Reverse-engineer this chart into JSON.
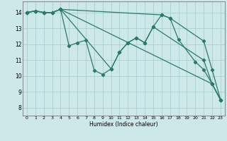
{
  "xlabel": "Humidex (Indice chaleur)",
  "xlim": [
    -0.5,
    23.5
  ],
  "ylim": [
    7.5,
    14.7
  ],
  "yticks": [
    8,
    9,
    10,
    11,
    12,
    13,
    14
  ],
  "xticks": [
    0,
    1,
    2,
    3,
    4,
    5,
    6,
    7,
    8,
    9,
    10,
    11,
    12,
    13,
    14,
    15,
    16,
    17,
    18,
    19,
    20,
    21,
    22,
    23
  ],
  "bg_color": "#cce8e8",
  "grid_color": "#aacece",
  "line_color": "#2a7a6a",
  "lines": [
    {
      "x": [
        0,
        1,
        2,
        3,
        4,
        16,
        17,
        21,
        22,
        23
      ],
      "y": [
        14.0,
        14.1,
        14.0,
        14.0,
        14.2,
        13.85,
        13.65,
        12.2,
        10.4,
        8.5
      ]
    },
    {
      "x": [
        0,
        1,
        2,
        3,
        4,
        5,
        6,
        7,
        8,
        9,
        10,
        11,
        12,
        13,
        14,
        15,
        21,
        22,
        23
      ],
      "y": [
        14.0,
        14.1,
        14.0,
        14.0,
        14.2,
        11.9,
        12.1,
        12.25,
        10.35,
        10.1,
        10.45,
        11.5,
        12.1,
        12.4,
        12.1,
        13.1,
        11.0,
        9.5,
        8.5
      ]
    },
    {
      "x": [
        0,
        1,
        2,
        3,
        4,
        10,
        11,
        12,
        13,
        14,
        15,
        16,
        17,
        18,
        20,
        21,
        22,
        23
      ],
      "y": [
        14.0,
        14.1,
        14.0,
        14.0,
        14.2,
        10.45,
        11.5,
        12.1,
        12.4,
        12.1,
        13.1,
        13.85,
        13.65,
        12.3,
        10.9,
        10.4,
        9.5,
        8.5
      ]
    },
    {
      "x": [
        0,
        1,
        2,
        3,
        4,
        22,
        23
      ],
      "y": [
        14.0,
        14.1,
        14.0,
        14.0,
        14.2,
        9.5,
        8.5
      ]
    }
  ]
}
